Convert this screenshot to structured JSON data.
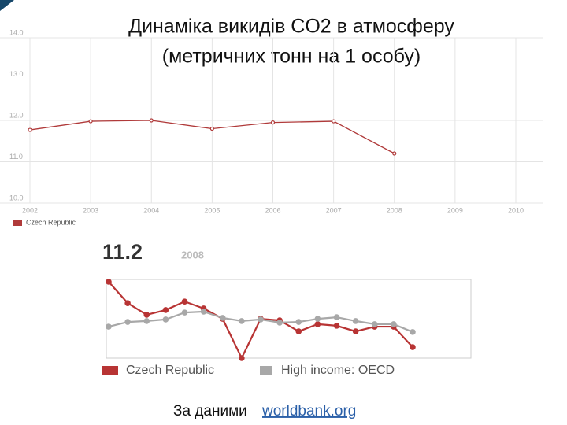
{
  "slide_title": [
    "Динаміка викидів CO2 в атмосферу",
    "(метричних тонн на 1 особу)"
  ],
  "chart_data": [
    {
      "type": "line",
      "categories": [
        "2002",
        "2003",
        "2004",
        "2005",
        "2006",
        "2007",
        "2008",
        "2009",
        "2010"
      ],
      "series": [
        {
          "name": "Czech Republic",
          "color": "#b03a3a",
          "values": [
            11.77,
            11.98,
            12.0,
            11.8,
            11.95,
            11.98,
            11.2,
            null,
            null
          ]
        }
      ],
      "ylim": [
        10,
        14
      ],
      "yticks": [
        {
          "value": 10,
          "label": "10.0"
        },
        {
          "value": 11,
          "label": "11.0"
        },
        {
          "value": 12,
          "label": "12.0"
        },
        {
          "value": 13,
          "label": "13.0"
        },
        {
          "value": 14,
          "label": "14.0"
        }
      ],
      "grid": true
    },
    {
      "type": "line",
      "highlight_value": 11.2,
      "highlight_year": "2008",
      "categories": [
        null,
        null,
        null,
        null,
        null,
        null,
        null,
        null,
        null,
        null,
        null,
        null,
        null,
        null,
        null,
        null,
        null
      ],
      "series": [
        {
          "name": "Czech Republic",
          "color": "#b83434",
          "values": [
            13.28,
            12.6,
            12.23,
            12.38,
            12.65,
            12.43,
            12.1,
            10.85,
            12.1,
            12.05,
            11.7,
            11.93,
            11.88,
            11.7,
            11.85,
            11.85,
            11.2
          ]
        },
        {
          "name": "High income: OECD",
          "color": "#a8a8a8",
          "values": [
            11.85,
            12.0,
            12.03,
            12.08,
            12.3,
            12.33,
            12.13,
            12.03,
            12.08,
            11.98,
            12.0,
            12.1,
            12.15,
            12.03,
            11.93,
            11.93,
            11.68
          ]
        }
      ]
    }
  ],
  "footer": {
    "text": "За даними",
    "link": "worldbank.org"
  }
}
